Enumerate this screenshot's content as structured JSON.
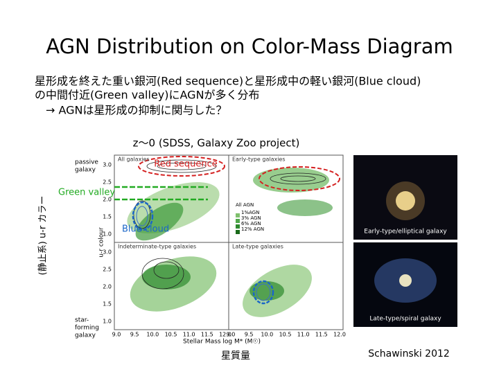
{
  "title": "AGN Distribution on Color-Mass Diagram",
  "body": [
    "星形成を終えた重い銀河(Red sequence)と星形成中の軽い銀河(Blue cloud)",
    "の中間付近(Green valley)にAGNが多く分布",
    "→ AGNは星形成の抑制に関与した？"
  ],
  "redshift_note": "z～0 (SDSS, Galaxy Zoo project)",
  "y_axis_label": "(静止系) u-r カラー",
  "x_axis_label": "星質量",
  "citation": "Schawinski 2012",
  "annotations": {
    "red": "Red sequence",
    "green": "Green valley",
    "blue": "Blue cloud"
  },
  "figure": {
    "panels": [
      "All galaxies",
      "Early-type galaxies",
      "Indeterminate-type galaxies",
      "Late-type galaxies"
    ],
    "side_labels": {
      "top": [
        "passive",
        "galaxy"
      ],
      "bottom": [
        "star-",
        "forming",
        "galaxy"
      ]
    },
    "y_label": "u-r colour",
    "x_label": "Stellar Mass log M* (M☉)",
    "yticks": [
      "3.0",
      "2.5",
      "2.0",
      "1.5",
      "1.0"
    ],
    "xticks": [
      "9.0",
      "9.5",
      "10.0",
      "10.5",
      "11.0",
      "11.5",
      "12.0"
    ],
    "legend": [
      "All AGN",
      "1%AGN",
      "3% AGN",
      "6% AGN",
      "12% AGN"
    ]
  },
  "images": [
    "Early-type/elliptical galaxy",
    "Late-type/spiral galaxy"
  ]
}
